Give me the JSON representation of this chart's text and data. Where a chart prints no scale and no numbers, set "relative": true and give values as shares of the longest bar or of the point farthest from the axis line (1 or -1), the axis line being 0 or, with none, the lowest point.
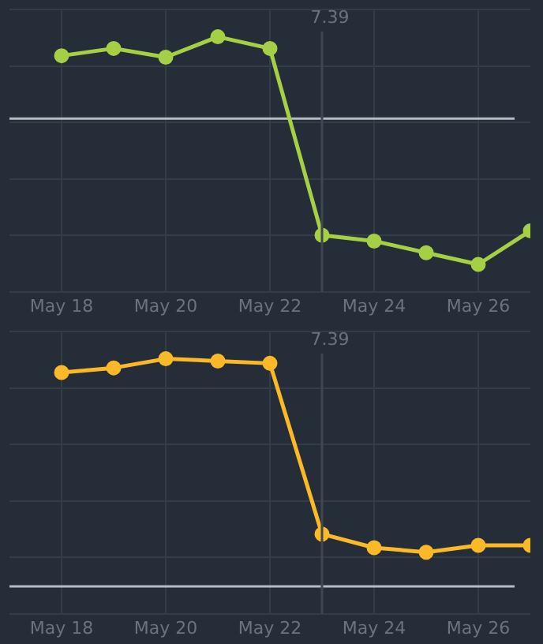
{
  "chart_data": [
    {
      "type": "line",
      "relative": true,
      "x": [
        "--05-18",
        "--05-19",
        "--05-20",
        "--05-21",
        "--05-22",
        "--05-23",
        "--05-24",
        "--05-25",
        "--05-26",
        "--05-27"
      ],
      "series": [
        {
          "color": "#a5cf45",
          "values": [
            0.43,
            0.48,
            0.42,
            0.56,
            0.48,
            -0.8,
            -0.84,
            -0.92,
            -1,
            -0.77
          ]
        }
      ],
      "xlim": [
        "--05-17",
        "--05-27"
      ],
      "xticks": [
        {
          "value": "--05-18",
          "label": "May 18"
        },
        {
          "value": "--05-20",
          "label": "May 20"
        },
        {
          "value": "--05-22",
          "label": "May 22"
        },
        {
          "value": "--05-24",
          "label": "May 24"
        },
        {
          "value": "--05-26",
          "label": "May 26"
        }
      ],
      "ref_lines": [
        {
          "axis": "x",
          "value": "--05-23",
          "label": "7.39",
          "color": "#3e4753"
        }
      ],
      "grid": true,
      "marker": "circle",
      "line_style": "solid"
    },
    {
      "type": "line",
      "relative": true,
      "x": [
        "--05-18",
        "--05-19",
        "--05-20",
        "--05-21",
        "--05-22",
        "--05-23",
        "--05-24",
        "--05-25",
        "--05-26",
        "--05-27"
      ],
      "series": [
        {
          "color": "#fbb827",
          "values": [
            0.94,
            0.96,
            1,
            0.99,
            0.98,
            0.23,
            0.17,
            0.15,
            0.18,
            0.18
          ]
        }
      ],
      "xlim": [
        "--05-17",
        "--05-27"
      ],
      "xticks": [
        {
          "value": "--05-18",
          "label": "May 18"
        },
        {
          "value": "--05-20",
          "label": "May 20"
        },
        {
          "value": "--05-22",
          "label": "May 22"
        },
        {
          "value": "--05-24",
          "label": "May 24"
        },
        {
          "value": "--05-26",
          "label": "May 26"
        }
      ],
      "ref_lines": [
        {
          "axis": "x",
          "value": "--05-23",
          "label": "7.39",
          "color": "#3e4753"
        }
      ],
      "grid": true,
      "marker": "circle",
      "line_style": "solid"
    }
  ]
}
